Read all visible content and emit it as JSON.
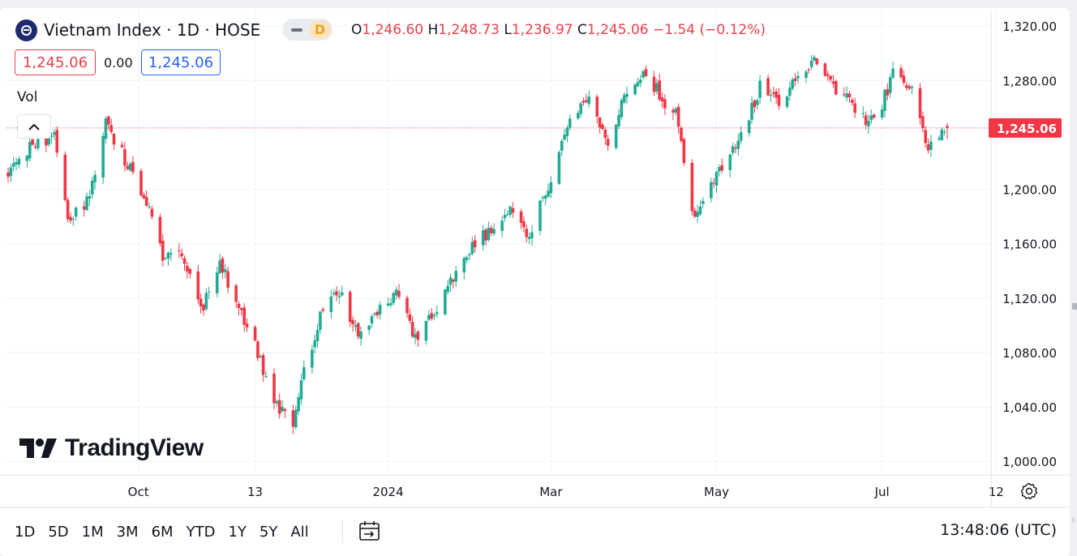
{
  "header": {
    "symbol_title": "Vietnam Index · 1D · HOSE",
    "mode_badge": "D",
    "ohlc": {
      "o_label": "O",
      "o_value": "1,246.60",
      "h_label": "H",
      "h_value": "1,248.73",
      "l_label": "L",
      "l_value": "1,236.97",
      "c_label": "C",
      "c_value": "1,245.06",
      "change": "−1.54 (−0.12%)"
    }
  },
  "quotes": {
    "bid": "1,245.06",
    "spread": "0.00",
    "ask": "1,245.06"
  },
  "indicator_label": "Vol",
  "watermark": "TradingView",
  "bottom_toolbar": {
    "ranges": [
      "1D",
      "5D",
      "1M",
      "3M",
      "6M",
      "YTD",
      "1Y",
      "5Y",
      "All"
    ],
    "clock": "13:48:06 (UTC)"
  },
  "colors": {
    "up": "#22ab94",
    "down": "#f23645",
    "accent": "#2962ff",
    "last_price_bg": "#f23645"
  },
  "icons": [
    "symbol-logo-icon",
    "collapse-chevron-icon",
    "tradingview-logo-icon",
    "date-range-icon",
    "settings-gear-icon"
  ],
  "chart_data": {
    "type": "candlestick",
    "symbol": "Vietnam Index",
    "interval": "1D",
    "exchange": "HOSE",
    "y_axis": {
      "ticks": [
        1000,
        1040,
        1080,
        1120,
        1160,
        1200,
        1280,
        1320
      ],
      "tick_labels": [
        "1,000.00",
        "1,040.00",
        "1,080.00",
        "1,120.00",
        "1,160.00",
        "1,200.00",
        "1,280.00",
        "1,320.00"
      ],
      "ylim": [
        990,
        1332
      ]
    },
    "x_axis": {
      "tick_labels": [
        "Oct",
        "13",
        "2024",
        "Mar",
        "May",
        "Jul",
        "12"
      ],
      "tick_dates": [
        "2023-10-01",
        "2023-11-13",
        "2024-01-01",
        "2024-03-01",
        "2024-05-01",
        "2024-07-01",
        "2024-08-12"
      ],
      "first_date": "2023-08-14",
      "last_date": "2024-07-25"
    },
    "last_price": 1245.06,
    "last_price_label": "1,245.06",
    "grid": true,
    "keypoints": [
      [
        "2023-08-14",
        1212
      ],
      [
        "2023-08-24",
        1234
      ],
      [
        "2023-08-31",
        1240
      ],
      [
        "2023-09-05",
        1175
      ],
      [
        "2023-09-12",
        1190
      ],
      [
        "2023-09-19",
        1248
      ],
      [
        "2023-09-26",
        1222
      ],
      [
        "2023-10-03",
        1195
      ],
      [
        "2023-10-10",
        1150
      ],
      [
        "2023-10-17",
        1150
      ],
      [
        "2023-10-24",
        1110
      ],
      [
        "2023-10-31",
        1145
      ],
      [
        "2023-11-07",
        1115
      ],
      [
        "2023-11-14",
        1080
      ],
      [
        "2023-11-21",
        1040
      ],
      [
        "2023-11-27",
        1024
      ],
      [
        "2023-12-01",
        1068
      ],
      [
        "2023-12-07",
        1105
      ],
      [
        "2023-12-14",
        1125
      ],
      [
        "2023-12-21",
        1090
      ],
      [
        "2023-12-28",
        1110
      ],
      [
        "2024-01-04",
        1126
      ],
      [
        "2024-01-11",
        1088
      ],
      [
        "2024-01-18",
        1110
      ],
      [
        "2024-01-25",
        1135
      ],
      [
        "2024-02-01",
        1160
      ],
      [
        "2024-02-08",
        1170
      ],
      [
        "2024-02-15",
        1185
      ],
      [
        "2024-02-22",
        1165
      ],
      [
        "2024-03-01",
        1208
      ],
      [
        "2024-03-08",
        1255
      ],
      [
        "2024-03-15",
        1265
      ],
      [
        "2024-03-22",
        1235
      ],
      [
        "2024-03-29",
        1275
      ],
      [
        "2024-04-05",
        1288
      ],
      [
        "2024-04-12",
        1262
      ],
      [
        "2024-04-16",
        1255
      ],
      [
        "2024-04-19",
        1220
      ],
      [
        "2024-04-23",
        1178
      ],
      [
        "2024-04-26",
        1190
      ],
      [
        "2024-05-03",
        1215
      ],
      [
        "2024-05-10",
        1242
      ],
      [
        "2024-05-17",
        1275
      ],
      [
        "2024-05-24",
        1265
      ],
      [
        "2024-05-31",
        1285
      ],
      [
        "2024-06-07",
        1295
      ],
      [
        "2024-06-14",
        1275
      ],
      [
        "2024-06-21",
        1258
      ],
      [
        "2024-06-28",
        1248
      ],
      [
        "2024-07-05",
        1285
      ],
      [
        "2024-07-12",
        1275
      ],
      [
        "2024-07-18",
        1232
      ],
      [
        "2024-07-25",
        1245
      ]
    ]
  }
}
